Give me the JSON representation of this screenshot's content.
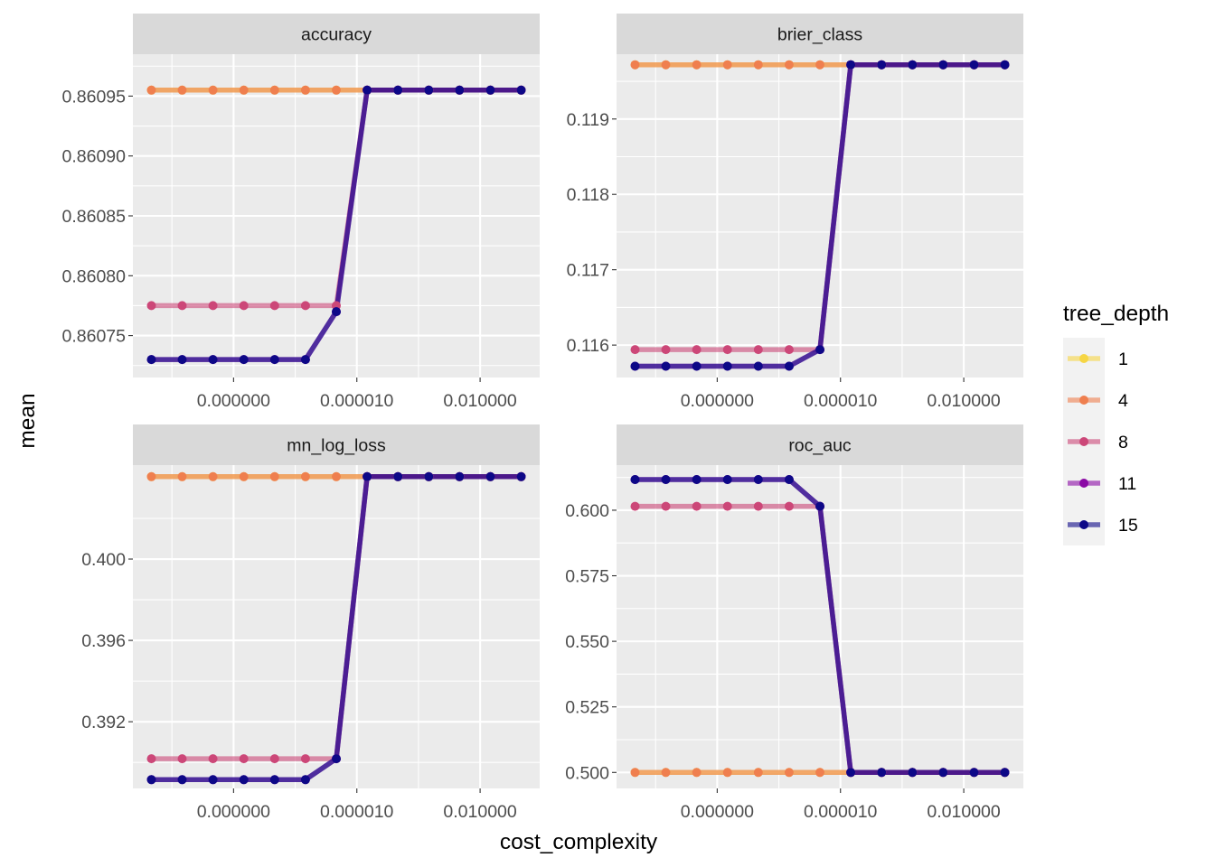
{
  "chart_data": {
    "type": "line",
    "xlabel": "cost_complexity",
    "ylabel": "mean",
    "x_scale": "log10",
    "x_tick_labels": [
      "0.000000",
      "0.000010",
      "0.010000"
    ],
    "x": [
      1e-10,
      5.62e-10,
      3.16e-09,
      1.78e-08,
      1e-07,
      5.62e-07,
      3.16e-06,
      1.78e-05,
      0.0001,
      0.000562,
      0.00316,
      0.0178,
      0.1
    ],
    "x_axis_ticks": [
      1e-08,
      1e-05,
      0.01
    ],
    "legend": {
      "title": "tree_depth",
      "position": "right",
      "entries": [
        {
          "label": "1",
          "color": "#F6D645"
        },
        {
          "label": "4",
          "color": "#EF7F4F"
        },
        {
          "label": "8",
          "color": "#CC4778"
        },
        {
          "label": "11",
          "color": "#8B0AA5"
        },
        {
          "label": "15",
          "color": "#0D0887"
        }
      ]
    },
    "panels": [
      {
        "strip": "accuracy",
        "ylim": [
          0.860715,
          0.860985
        ],
        "y_ticks": [
          0.86075,
          0.8608,
          0.86085,
          0.8609,
          0.86095
        ],
        "y_tick_labels": [
          "0.86075",
          "0.86080",
          "0.86085",
          "0.86090",
          "0.86095"
        ],
        "series": [
          {
            "name": "1",
            "values": [
              0.860955,
              0.860955,
              0.860955,
              0.860955,
              0.860955,
              0.860955,
              0.860955,
              0.860955,
              0.860955,
              0.860955,
              0.860955,
              0.860955,
              0.860955
            ]
          },
          {
            "name": "4",
            "values": [
              0.860955,
              0.860955,
              0.860955,
              0.860955,
              0.860955,
              0.860955,
              0.860955,
              0.860955,
              0.860955,
              0.860955,
              0.860955,
              0.860955,
              0.860955
            ]
          },
          {
            "name": "8",
            "values": [
              0.860775,
              0.860775,
              0.860775,
              0.860775,
              0.860775,
              0.860775,
              0.860775,
              0.860955,
              0.860955,
              0.860955,
              0.860955,
              0.860955,
              0.860955
            ]
          },
          {
            "name": "11",
            "values": [
              0.86073,
              0.86073,
              0.86073,
              0.86073,
              0.86073,
              0.86073,
              0.86077,
              0.860955,
              0.860955,
              0.860955,
              0.860955,
              0.860955,
              0.860955
            ]
          },
          {
            "name": "15",
            "values": [
              0.86073,
              0.86073,
              0.86073,
              0.86073,
              0.86073,
              0.86073,
              0.86077,
              0.860955,
              0.860955,
              0.860955,
              0.860955,
              0.860955,
              0.860955
            ]
          }
        ]
      },
      {
        "strip": "brier_class",
        "ylim": [
          0.11557,
          0.11986
        ],
        "y_ticks": [
          0.116,
          0.117,
          0.118,
          0.119
        ],
        "y_tick_labels": [
          "0.116",
          "0.117",
          "0.118",
          "0.119"
        ],
        "series": [
          {
            "name": "1",
            "values": [
              0.11972,
              0.11972,
              0.11972,
              0.11972,
              0.11972,
              0.11972,
              0.11972,
              0.11972,
              0.11972,
              0.11972,
              0.11972,
              0.11972,
              0.11972
            ]
          },
          {
            "name": "4",
            "values": [
              0.11972,
              0.11972,
              0.11972,
              0.11972,
              0.11972,
              0.11972,
              0.11972,
              0.11972,
              0.11972,
              0.11972,
              0.11972,
              0.11972,
              0.11972
            ]
          },
          {
            "name": "8",
            "values": [
              0.11594,
              0.11594,
              0.11594,
              0.11594,
              0.11594,
              0.11594,
              0.11594,
              0.11972,
              0.11972,
              0.11972,
              0.11972,
              0.11972,
              0.11972
            ]
          },
          {
            "name": "11",
            "values": [
              0.11572,
              0.11572,
              0.11572,
              0.11572,
              0.11572,
              0.11572,
              0.11594,
              0.11972,
              0.11972,
              0.11972,
              0.11972,
              0.11972,
              0.11972
            ]
          },
          {
            "name": "15",
            "values": [
              0.11572,
              0.11572,
              0.11572,
              0.11572,
              0.11572,
              0.11572,
              0.11594,
              0.11972,
              0.11972,
              0.11972,
              0.11972,
              0.11972,
              0.11972
            ]
          }
        ]
      },
      {
        "strip": "mn_log_loss",
        "ylim": [
          0.38872,
          0.40462
        ],
        "y_ticks": [
          0.392,
          0.396,
          0.4
        ],
        "y_tick_labels": [
          "0.392",
          "0.396",
          "0.400"
        ],
        "series": [
          {
            "name": "1",
            "values": [
              0.40405,
              0.40405,
              0.40405,
              0.40405,
              0.40405,
              0.40405,
              0.40405,
              0.40405,
              0.40405,
              0.40405,
              0.40405,
              0.40405,
              0.40405
            ]
          },
          {
            "name": "4",
            "values": [
              0.40405,
              0.40405,
              0.40405,
              0.40405,
              0.40405,
              0.40405,
              0.40405,
              0.40405,
              0.40405,
              0.40405,
              0.40405,
              0.40405,
              0.40405
            ]
          },
          {
            "name": "8",
            "values": [
              0.39018,
              0.39018,
              0.39018,
              0.39018,
              0.39018,
              0.39018,
              0.39018,
              0.40405,
              0.40405,
              0.40405,
              0.40405,
              0.40405,
              0.40405
            ]
          },
          {
            "name": "11",
            "values": [
              0.38915,
              0.38915,
              0.38915,
              0.38915,
              0.38915,
              0.38915,
              0.39018,
              0.40405,
              0.40405,
              0.40405,
              0.40405,
              0.40405,
              0.40405
            ]
          },
          {
            "name": "15",
            "values": [
              0.38915,
              0.38915,
              0.38915,
              0.38915,
              0.38915,
              0.38915,
              0.39018,
              0.40405,
              0.40405,
              0.40405,
              0.40405,
              0.40405,
              0.40405
            ]
          }
        ]
      },
      {
        "strip": "roc_auc",
        "ylim": [
          0.4939,
          0.6172
        ],
        "y_ticks": [
          0.5,
          0.525,
          0.55,
          0.575,
          0.6
        ],
        "y_tick_labels": [
          "0.500",
          "0.525",
          "0.550",
          "0.575",
          "0.600"
        ],
        "series": [
          {
            "name": "1",
            "values": [
              0.5,
              0.5,
              0.5,
              0.5,
              0.5,
              0.5,
              0.5,
              0.5,
              0.5,
              0.5,
              0.5,
              0.5,
              0.5
            ]
          },
          {
            "name": "4",
            "values": [
              0.5,
              0.5,
              0.5,
              0.5,
              0.5,
              0.5,
              0.5,
              0.5,
              0.5,
              0.5,
              0.5,
              0.5,
              0.5
            ]
          },
          {
            "name": "8",
            "values": [
              0.6015,
              0.6015,
              0.6015,
              0.6015,
              0.6015,
              0.6015,
              0.6015,
              0.5,
              0.5,
              0.5,
              0.5,
              0.5,
              0.5
            ]
          },
          {
            "name": "11",
            "values": [
              0.6117,
              0.6117,
              0.6117,
              0.6117,
              0.6117,
              0.6117,
              0.6015,
              0.5,
              0.5,
              0.5,
              0.5,
              0.5,
              0.5
            ]
          },
          {
            "name": "15",
            "values": [
              0.6117,
              0.6117,
              0.6117,
              0.6117,
              0.6117,
              0.6117,
              0.6015,
              0.5,
              0.5,
              0.5,
              0.5,
              0.5,
              0.5
            ]
          }
        ]
      }
    ]
  }
}
